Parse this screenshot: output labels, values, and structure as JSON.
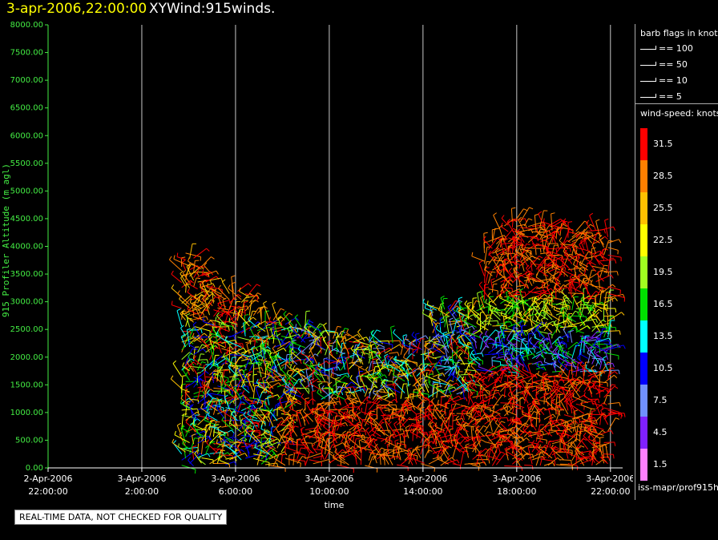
{
  "title": {
    "datetime": "3-apr-2006,22:00:00",
    "name": "XYWind:915winds."
  },
  "legend": {
    "barb_title": "barb flags in knots",
    "barbs": [
      "== 100",
      "== 50",
      "== 10",
      "== 5"
    ],
    "speed_title": "wind-speed: knots",
    "color_bins": [
      {
        "label": "31.5",
        "color": "#ff0000"
      },
      {
        "label": "28.5",
        "color": "#ff8000"
      },
      {
        "label": "25.5",
        "color": "#ffc000"
      },
      {
        "label": "22.5",
        "color": "#ffff00"
      },
      {
        "label": "19.5",
        "color": "#a0ff20"
      },
      {
        "label": "16.5",
        "color": "#00e000"
      },
      {
        "label": "13.5",
        "color": "#00ffff"
      },
      {
        "label": "10.5",
        "color": "#0000ff"
      },
      {
        "label": "7.5",
        "color": "#7090ff"
      },
      {
        "label": "4.5",
        "color": "#8020ff"
      },
      {
        "label": "1.5",
        "color": "#ff80ff"
      }
    ],
    "source": "iss-mapr/prof915h"
  },
  "disclaimer": "REAL-TIME DATA, NOT CHECKED FOR QUALITY",
  "chart_data": {
    "type": "scatter",
    "title": "XYWind:915winds.",
    "xlabel": "time",
    "ylabel": "915 Profiler Altitude (m agl)",
    "ylim": [
      0,
      8000
    ],
    "yticks": [
      "0.00",
      "500.00",
      "1000.00",
      "1500.00",
      "2000.00",
      "2500.00",
      "3000.00",
      "3500.00",
      "4000.00",
      "4500.00",
      "5000.00",
      "5500.00",
      "6000.00",
      "6500.00",
      "7000.00",
      "7500.00",
      "8000.00"
    ],
    "xticks": [
      {
        "date": "2-Apr-2006",
        "time": "22:00:00"
      },
      {
        "date": "3-Apr-2006",
        "time": "2:00:00"
      },
      {
        "date": "3-Apr-2006",
        "time": "6:00:00"
      },
      {
        "date": "3-Apr-2006",
        "time": "10:00:00"
      },
      {
        "date": "3-Apr-2006",
        "time": "14:00:00"
      },
      {
        "date": "3-Apr-2006",
        "time": "18:00:00"
      },
      {
        "date": "3-Apr-2006",
        "time": "22:00:00"
      }
    ],
    "grid": "vertical",
    "series": [
      {
        "x": "3-Apr-2006 4:00",
        "top_altitude": 3900,
        "bottom_altitude": 100
      },
      {
        "x": "3-Apr-2006 6:00",
        "top_altitude": 3200,
        "bottom_altitude": 100
      },
      {
        "x": "3-Apr-2006 10:00",
        "top_altitude": 2800,
        "bottom_altitude": 100
      },
      {
        "x": "3-Apr-2006 14:00",
        "top_altitude": 2300,
        "bottom_altitude": 100
      },
      {
        "x": "3-Apr-2006 16:00",
        "top_altitude": 2900,
        "bottom_altitude": 100
      },
      {
        "x": "3-Apr-2006 18:00",
        "top_altitude": 4600,
        "bottom_altitude": 100
      },
      {
        "x": "3-Apr-2006 22:00",
        "top_altitude": 4300,
        "bottom_altitude": 100
      }
    ]
  }
}
